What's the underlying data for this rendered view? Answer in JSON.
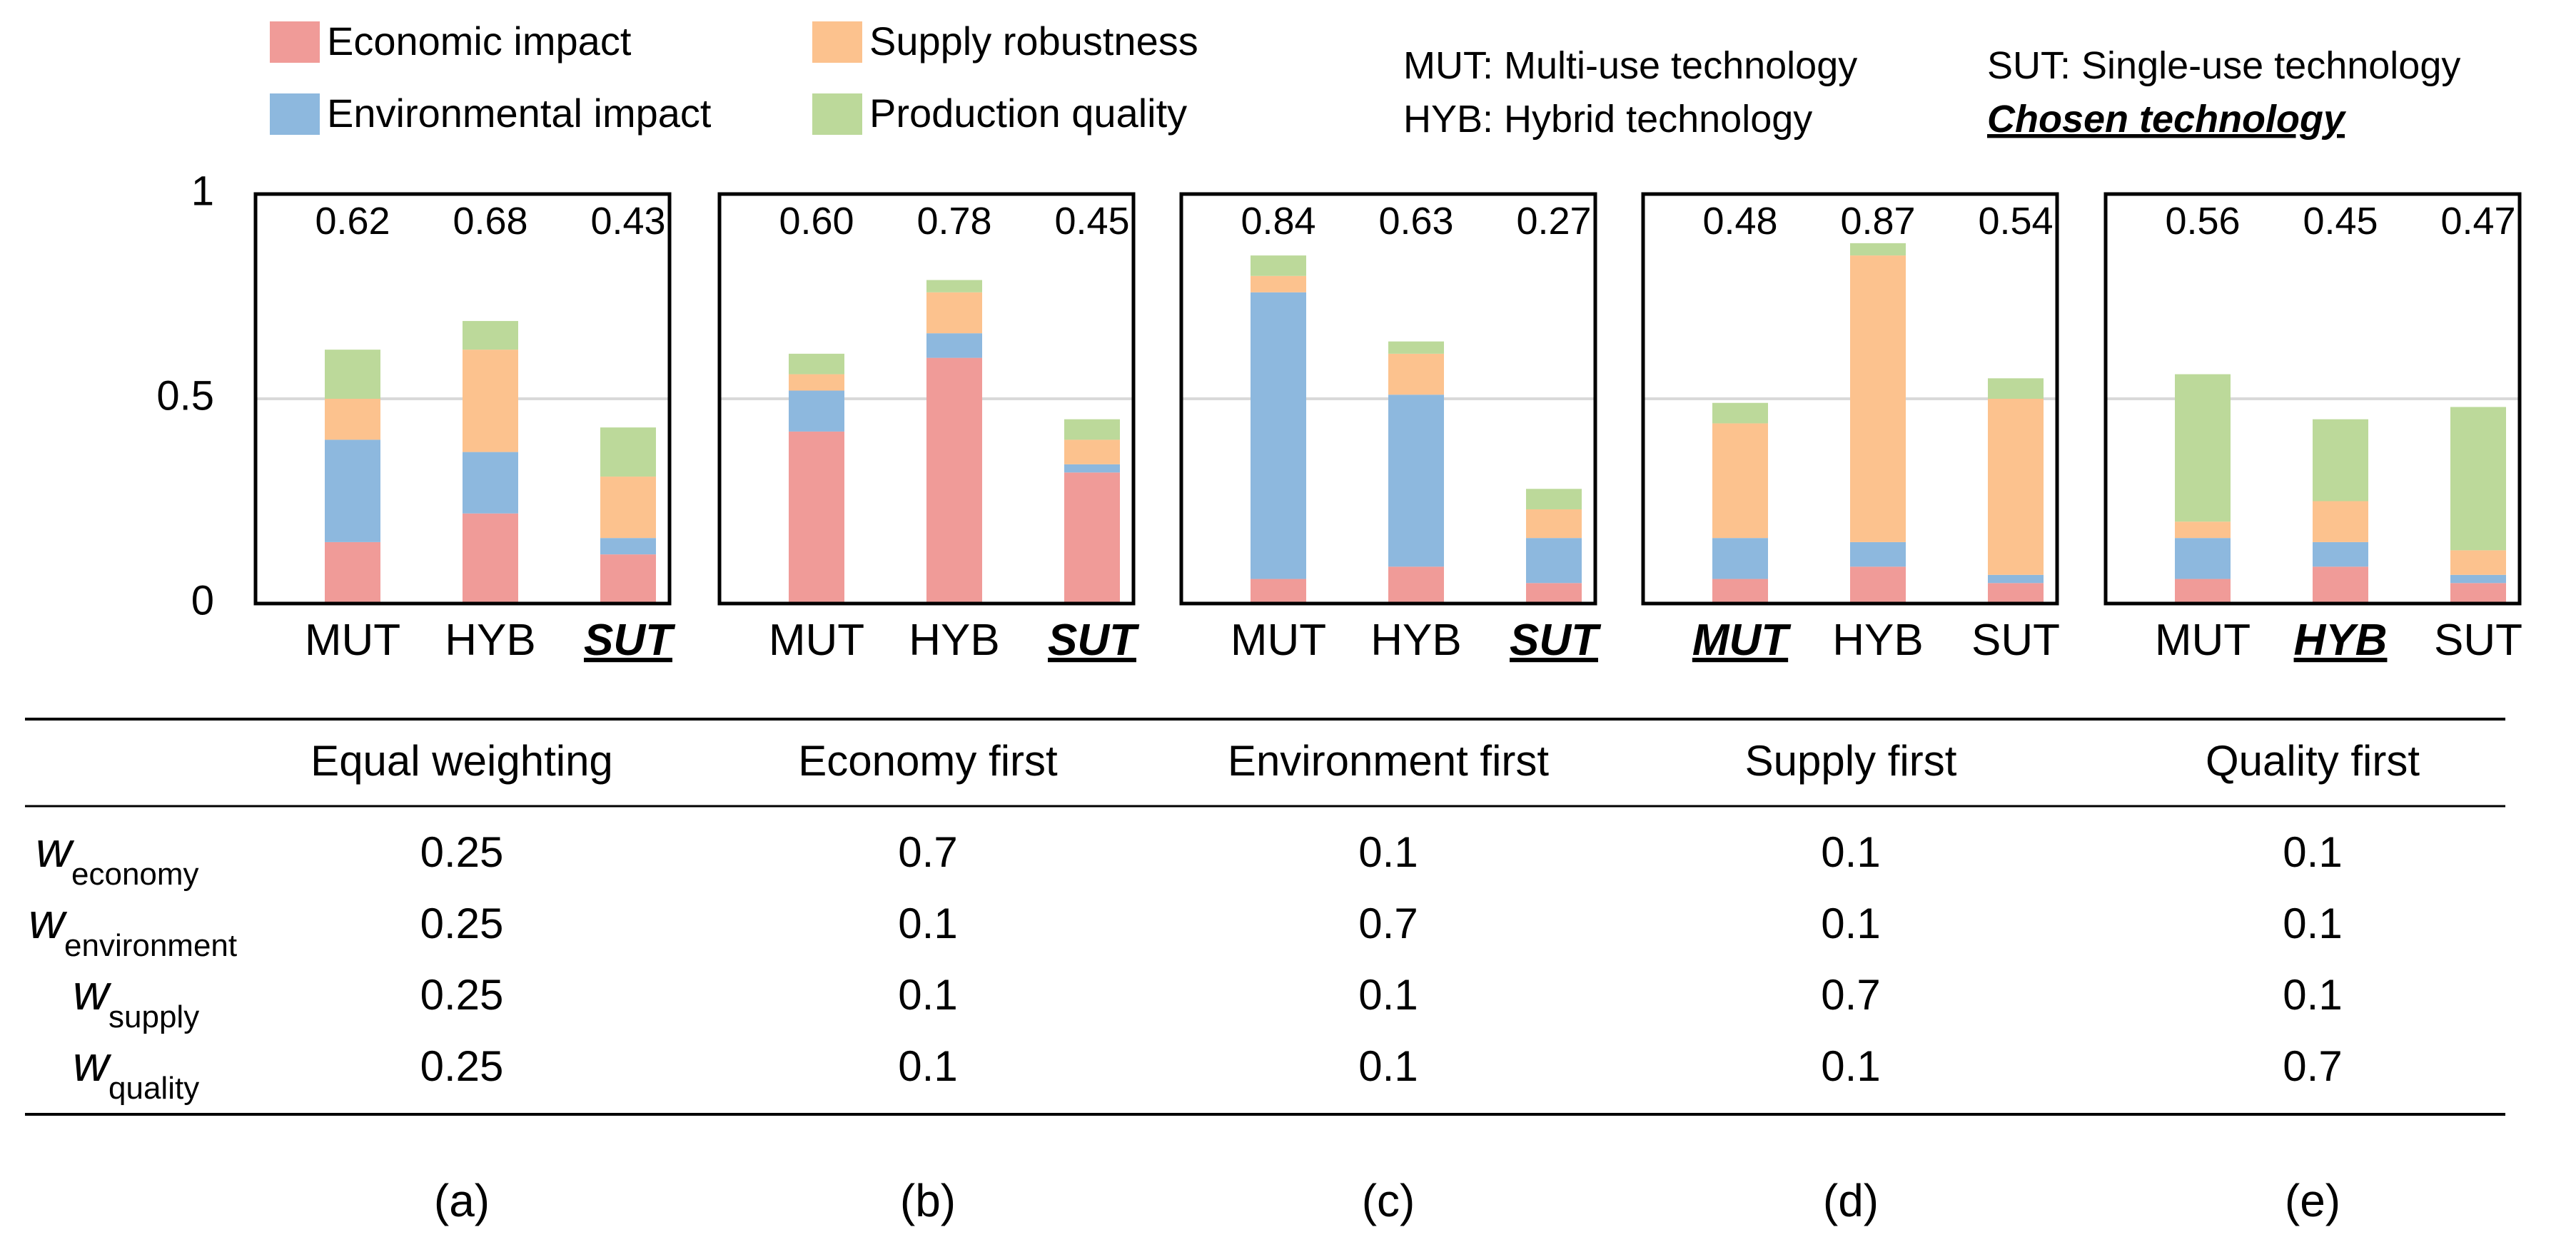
{
  "colors": {
    "economic": "#f09b98",
    "environmental": "#8db8de",
    "supply": "#fcc28e",
    "quality": "#bcd99a",
    "gridline": "#d9d9d9",
    "frame": "#000000"
  },
  "legend": {
    "items": [
      {
        "key": "economic",
        "label": "Economic impact"
      },
      {
        "key": "supply",
        "label": "Supply robustness"
      },
      {
        "key": "environmental",
        "label": "Environmental impact"
      },
      {
        "key": "quality",
        "label": "Production quality"
      }
    ],
    "abbreviations": {
      "mut": "MUT: Multi-use technology",
      "sut": "SUT: Single-use technology",
      "hyb": "HYB: Hybrid technology",
      "chosen": "Chosen technology"
    }
  },
  "axis": {
    "ylim": [
      0,
      1
    ],
    "ticks": [
      0,
      0.5,
      1
    ],
    "tick_labels": [
      "0",
      "0.5",
      "1"
    ],
    "gridline_value": 0.5
  },
  "chart_data": [
    {
      "type": "bar",
      "stacked": true,
      "panel": "(a)",
      "scenario": "Equal weighting",
      "categories": [
        "MUT",
        "HYB",
        "SUT"
      ],
      "chosen": "SUT",
      "totals": [
        "0.62",
        "0.68",
        "0.43"
      ],
      "series": [
        {
          "name": "Economic impact",
          "key": "economic",
          "values": [
            0.15,
            0.22,
            0.12
          ]
        },
        {
          "name": "Environmental impact",
          "key": "environmental",
          "values": [
            0.25,
            0.15,
            0.04
          ]
        },
        {
          "name": "Supply robustness",
          "key": "supply",
          "values": [
            0.1,
            0.25,
            0.15
          ]
        },
        {
          "name": "Production quality",
          "key": "quality",
          "values": [
            0.12,
            0.07,
            0.12
          ]
        }
      ],
      "ylim": [
        0,
        1
      ]
    },
    {
      "type": "bar",
      "stacked": true,
      "panel": "(b)",
      "scenario": "Economy first",
      "categories": [
        "MUT",
        "HYB",
        "SUT"
      ],
      "chosen": "SUT",
      "totals": [
        "0.60",
        "0.78",
        "0.45"
      ],
      "series": [
        {
          "name": "Economic impact",
          "key": "economic",
          "values": [
            0.42,
            0.6,
            0.32
          ]
        },
        {
          "name": "Environmental impact",
          "key": "environmental",
          "values": [
            0.1,
            0.06,
            0.02
          ]
        },
        {
          "name": "Supply robustness",
          "key": "supply",
          "values": [
            0.04,
            0.1,
            0.06
          ]
        },
        {
          "name": "Production quality",
          "key": "quality",
          "values": [
            0.05,
            0.03,
            0.05
          ]
        }
      ],
      "ylim": [
        0,
        1
      ]
    },
    {
      "type": "bar",
      "stacked": true,
      "panel": "(c)",
      "scenario": "Environment first",
      "categories": [
        "MUT",
        "HYB",
        "SUT"
      ],
      "chosen": "SUT",
      "totals": [
        "0.84",
        "0.63",
        "0.27"
      ],
      "series": [
        {
          "name": "Economic impact",
          "key": "economic",
          "values": [
            0.06,
            0.09,
            0.05
          ]
        },
        {
          "name": "Environmental impact",
          "key": "environmental",
          "values": [
            0.7,
            0.42,
            0.11
          ]
        },
        {
          "name": "Supply robustness",
          "key": "supply",
          "values": [
            0.04,
            0.1,
            0.07
          ]
        },
        {
          "name": "Production quality",
          "key": "quality",
          "values": [
            0.05,
            0.03,
            0.05
          ]
        }
      ],
      "ylim": [
        0,
        1
      ]
    },
    {
      "type": "bar",
      "stacked": true,
      "panel": "(d)",
      "scenario": "Supply first",
      "categories": [
        "MUT",
        "HYB",
        "SUT"
      ],
      "chosen": "MUT",
      "totals": [
        "0.48",
        "0.87",
        "0.54"
      ],
      "series": [
        {
          "name": "Economic impact",
          "key": "economic",
          "values": [
            0.06,
            0.09,
            0.05
          ]
        },
        {
          "name": "Environmental impact",
          "key": "environmental",
          "values": [
            0.1,
            0.06,
            0.02
          ]
        },
        {
          "name": "Supply robustness",
          "key": "supply",
          "values": [
            0.28,
            0.7,
            0.43
          ]
        },
        {
          "name": "Production quality",
          "key": "quality",
          "values": [
            0.05,
            0.03,
            0.05
          ]
        }
      ],
      "ylim": [
        0,
        1
      ]
    },
    {
      "type": "bar",
      "stacked": true,
      "panel": "(e)",
      "scenario": "Quality first",
      "categories": [
        "MUT",
        "HYB",
        "SUT"
      ],
      "chosen": "HYB",
      "totals": [
        "0.56",
        "0.45",
        "0.47"
      ],
      "series": [
        {
          "name": "Economic impact",
          "key": "economic",
          "values": [
            0.06,
            0.09,
            0.05
          ]
        },
        {
          "name": "Environmental impact",
          "key": "environmental",
          "values": [
            0.1,
            0.06,
            0.02
          ]
        },
        {
          "name": "Supply robustness",
          "key": "supply",
          "values": [
            0.04,
            0.1,
            0.06
          ]
        },
        {
          "name": "Production quality",
          "key": "quality",
          "values": [
            0.36,
            0.2,
            0.35
          ]
        }
      ],
      "ylim": [
        0,
        1
      ]
    }
  ],
  "weights_table": {
    "headers": [
      "Equal weighting",
      "Economy first",
      "Environment first",
      "Supply first",
      "Quality first"
    ],
    "rows": [
      {
        "symbol": "w",
        "subscript": "economy",
        "values": [
          "0.25",
          "0.7",
          "0.1",
          "0.1",
          "0.1"
        ]
      },
      {
        "symbol": "w",
        "subscript": "environment",
        "values": [
          "0.25",
          "0.1",
          "0.7",
          "0.1",
          "0.1"
        ]
      },
      {
        "symbol": "w",
        "subscript": "supply",
        "values": [
          "0.25",
          "0.1",
          "0.1",
          "0.7",
          "0.1"
        ]
      },
      {
        "symbol": "w",
        "subscript": "quality",
        "values": [
          "0.25",
          "0.1",
          "0.1",
          "0.1",
          "0.7"
        ]
      }
    ],
    "panel_labels": [
      "(a)",
      "(b)",
      "(c)",
      "(d)",
      "(e)"
    ]
  }
}
